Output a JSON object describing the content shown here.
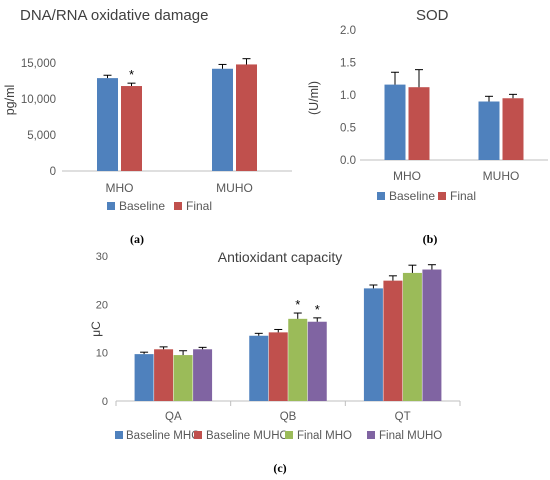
{
  "panel_labels": [
    "(a)",
    "(b)",
    "(c)"
  ],
  "chart_data": [
    {
      "type": "bar",
      "title": "DNA/RNA oxidative damage",
      "xlabel": "",
      "ylabel": "pg/ml",
      "ylim": [
        0,
        17500
      ],
      "yticks": [
        0,
        5000,
        10000,
        15000
      ],
      "ytick_labels": [
        "0",
        "5,000",
        "10,000",
        "15,000"
      ],
      "categories": [
        "MHO",
        "MUHO"
      ],
      "series": [
        {
          "name": "Baseline",
          "color": "#4f81bd",
          "values": [
            12900,
            14200
          ],
          "errors": [
            400,
            600
          ]
        },
        {
          "name": "Final",
          "color": "#c0504d",
          "values": [
            11800,
            14800
          ],
          "errors": [
            400,
            800
          ]
        }
      ],
      "annotations": [
        {
          "category": 0,
          "series": 1,
          "text": "*"
        }
      ],
      "legend": "bottom",
      "grid": false
    },
    {
      "type": "bar",
      "title": "SOD",
      "xlabel": "",
      "ylabel": "(U/ml)",
      "ylim": [
        0,
        2.0
      ],
      "yticks": [
        0,
        0.5,
        1.0,
        1.5,
        2.0
      ],
      "ytick_labels": [
        "0.0",
        "0.5",
        "1.0",
        "1.5",
        "2.0"
      ],
      "categories": [
        "MHO",
        "MUHO"
      ],
      "series": [
        {
          "name": "Baseline",
          "color": "#4f81bd",
          "values": [
            1.16,
            0.9
          ],
          "errors": [
            0.19,
            0.08
          ]
        },
        {
          "name": "Final",
          "color": "#c0504d",
          "values": [
            1.12,
            0.95
          ],
          "errors": [
            0.27,
            0.06
          ]
        }
      ],
      "annotations": [],
      "legend": "bottom",
      "grid": false
    },
    {
      "type": "bar",
      "title": "Antioxidant capacity",
      "xlabel": "",
      "ylabel": "μC",
      "ylim": [
        0,
        30
      ],
      "yticks": [
        0,
        10,
        20,
        30
      ],
      "ytick_labels": [
        "0",
        "10",
        "20",
        "30"
      ],
      "categories": [
        "QA",
        "QB",
        "QT"
      ],
      "series": [
        {
          "name": "Baseline MHO",
          "color": "#4f81bd",
          "values": [
            9.7,
            13.5,
            23.3
          ],
          "errors": [
            0.4,
            0.5,
            0.7
          ]
        },
        {
          "name": "Baseline MUHO",
          "color": "#c0504d",
          "values": [
            10.7,
            14.2,
            24.9
          ],
          "errors": [
            0.5,
            0.6,
            1.0
          ]
        },
        {
          "name": "Final MHO",
          "color": "#9bbb59",
          "values": [
            9.5,
            17.0,
            26.5
          ],
          "errors": [
            0.9,
            1.2,
            1.6
          ]
        },
        {
          "name": "Final MUHO",
          "color": "#8064a2",
          "values": [
            10.7,
            16.4,
            27.2
          ],
          "errors": [
            0.4,
            0.8,
            1.0
          ]
        }
      ],
      "annotations": [
        {
          "category": 1,
          "series": 2,
          "text": "*"
        },
        {
          "category": 1,
          "series": 3,
          "text": "*"
        }
      ],
      "legend": "bottom",
      "grid": false
    }
  ]
}
